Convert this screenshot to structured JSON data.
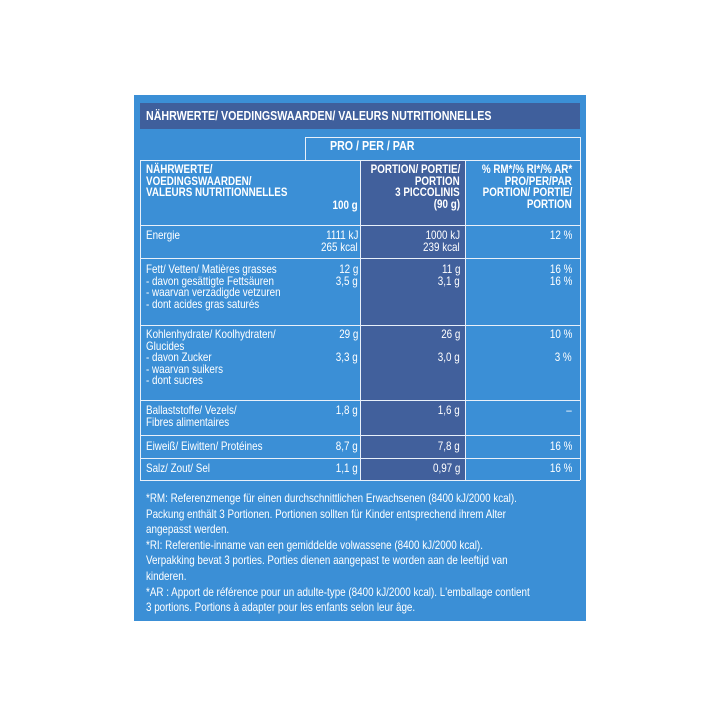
{
  "header": {
    "title": "NÄHRWERTE/ VOEDINGSWAARDEN/ VALEURS NUTRITIONNELLES"
  },
  "table": {
    "group_header": "PRO / PER / PAR",
    "columns": [
      [
        "NÄHRWERTE/",
        "VOEDINGSWAARDEN/",
        "VALEURS NUTRITIONNELLES"
      ],
      [
        "100 g"
      ],
      [
        "PORTION/ PORTIE/",
        "PORTION",
        "3 PICCOLINIS",
        "(90 g)"
      ],
      [
        "% RM*/% RI*/% AR*",
        "PRO/PER/PAR",
        "PORTION/ PORTIE/",
        "PORTION"
      ]
    ],
    "rows": [
      [
        [
          "Energie"
        ],
        [
          "1111 kJ",
          "265 kcal"
        ],
        [
          "1000 kJ",
          "239 kcal"
        ],
        [
          "12 %"
        ]
      ],
      [
        [
          "Fett/ Vetten/ Matières grasses",
          "- davon gesättigte Fettsäuren",
          "- waarvan verzadigde vetzuren",
          "- dont acides gras saturés"
        ],
        [
          "12 g",
          "3,5 g"
        ],
        [
          "11 g",
          "3,1 g"
        ],
        [
          "16 %",
          "16 %"
        ]
      ],
      [
        [
          "Kohlenhydrate/ Koolhydraten/",
          "Glucides",
          "- davon Zucker",
          "- waarvan suikers",
          "- dont sucres"
        ],
        [
          "29 g",
          null,
          "3,3 g"
        ],
        [
          "26 g",
          null,
          "3,0 g"
        ],
        [
          "10 %",
          null,
          "3 %"
        ]
      ],
      [
        [
          "Ballaststoffe/ Vezels/",
          "Fibres alimentaires"
        ],
        [
          "1,8 g"
        ],
        [
          "1,6 g"
        ],
        [
          "–"
        ]
      ],
      [
        [
          "Eiweiß/ Eiwitten/ Protéines"
        ],
        [
          "8,7 g"
        ],
        [
          "7,8 g"
        ],
        [
          "16 %"
        ]
      ],
      [
        [
          "Salz/ Zout/ Sel"
        ],
        [
          "1,1 g"
        ],
        [
          "0,97 g"
        ],
        [
          "16 %"
        ]
      ]
    ]
  },
  "footnotes": [
    [
      "*RM: Referenzmenge für einen durchschnittlichen Erwachsenen (8400 kJ/2000 kcal).",
      "Packung enthält 3 Portionen. Portionen sollten für Kinder entsprechend ihrem Alter",
      "angepasst werden."
    ],
    [
      "*RI: Referentie-inname van een gemiddelde volwassene (8400 kJ/2000 kcal).",
      "Verpakking bevat 3 porties. Porties dienen aangepast te worden aan de leeftijd van",
      "kinderen."
    ],
    [
      "*AR : Apport de référence pour un adulte-type (8400 kJ/2000 kcal). L'emballage contient",
      "3 portions. Portions à adapter pour les enfants selon leur âge."
    ]
  ]
}
